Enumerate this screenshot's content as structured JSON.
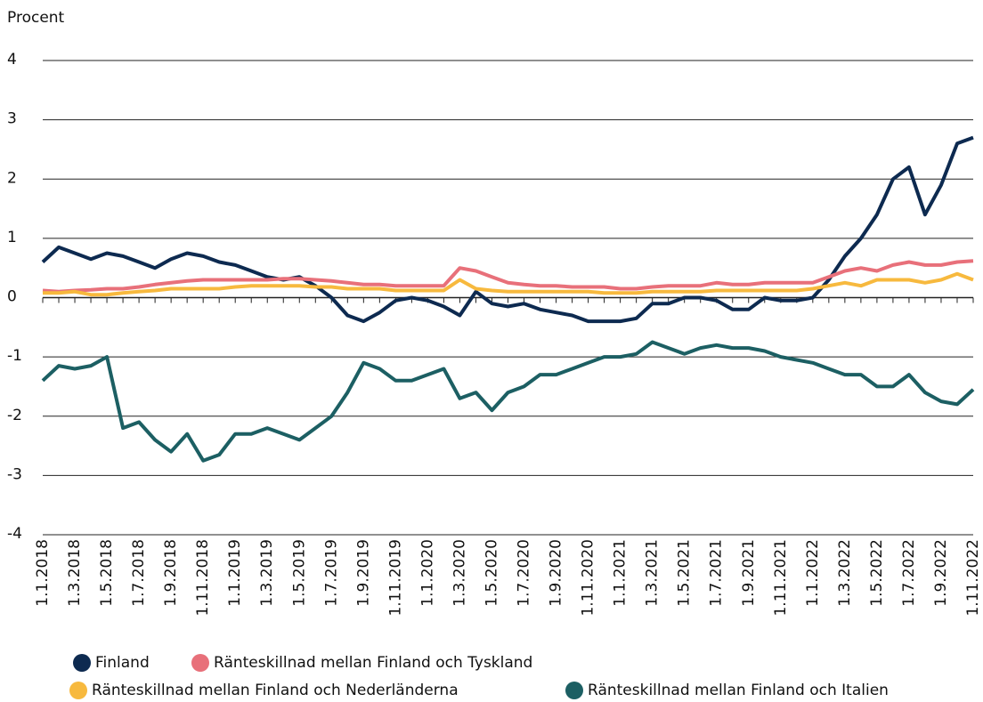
{
  "chart_data": {
    "type": "line",
    "y_label": "Procent",
    "categories": [
      "1.1.2018",
      null,
      "1.3.2018",
      null,
      "1.5.2018",
      null,
      "1.7.2018",
      null,
      "1.9.2018",
      null,
      "1.11.2018",
      null,
      "1.1.2019",
      null,
      "1.3.2019",
      null,
      "1.5.2019",
      null,
      "1.7.2019",
      null,
      "1.9.2019",
      null,
      "1.11.2019",
      null,
      "1.1.2020",
      null,
      "1.3.2020",
      null,
      "1.5.2020",
      null,
      "1.7.2020",
      null,
      "1.9.2020",
      null,
      "1.11.2020",
      null,
      "1.1.2021",
      null,
      "1.3.2021",
      null,
      "1.5.2021",
      null,
      "1.7.2021",
      null,
      "1.9.2021",
      null,
      "1.11.2021",
      null,
      "1.1.2022",
      null,
      "1.3.2022",
      null,
      "1.5.2022",
      null,
      "1.7.2022",
      null,
      "1.9.2022",
      null,
      "1.11.2022"
    ],
    "series": [
      {
        "name": "Finland",
        "color": "#0d2a50",
        "values": [
          0.6,
          0.85,
          0.75,
          0.65,
          0.75,
          0.7,
          0.6,
          0.5,
          0.65,
          0.75,
          0.7,
          0.6,
          0.55,
          0.45,
          0.35,
          0.3,
          0.35,
          0.2,
          0.0,
          -0.3,
          -0.4,
          -0.25,
          -0.05,
          0.0,
          -0.05,
          -0.15,
          -0.3,
          0.1,
          -0.1,
          -0.15,
          -0.1,
          -0.2,
          -0.25,
          -0.3,
          -0.4,
          -0.4,
          -0.4,
          -0.35,
          -0.1,
          -0.1,
          0.0,
          0.0,
          -0.05,
          -0.2,
          -0.2,
          0.0,
          -0.05,
          -0.05,
          0.0,
          0.3,
          0.7,
          1.0,
          1.4,
          2.0,
          2.2,
          1.4,
          1.9,
          2.6,
          2.7
        ]
      },
      {
        "name": "Ränteskillnad mellan Finland och Tyskland",
        "color": "#e8707a",
        "values": [
          0.12,
          0.1,
          0.12,
          0.13,
          0.15,
          0.15,
          0.18,
          0.22,
          0.25,
          0.28,
          0.3,
          0.3,
          0.3,
          0.3,
          0.3,
          0.32,
          0.32,
          0.3,
          0.28,
          0.25,
          0.22,
          0.22,
          0.2,
          0.2,
          0.2,
          0.2,
          0.5,
          0.45,
          0.35,
          0.25,
          0.22,
          0.2,
          0.2,
          0.18,
          0.18,
          0.18,
          0.15,
          0.15,
          0.18,
          0.2,
          0.2,
          0.2,
          0.25,
          0.22,
          0.22,
          0.25,
          0.25,
          0.25,
          0.25,
          0.35,
          0.45,
          0.5,
          0.45,
          0.55,
          0.6,
          0.55,
          0.55,
          0.6,
          0.62
        ]
      },
      {
        "name": "Ränteskillnad mellan Finland och Nederländerna",
        "color": "#f7b93e",
        "values": [
          0.08,
          0.08,
          0.1,
          0.05,
          0.05,
          0.08,
          0.1,
          0.12,
          0.15,
          0.15,
          0.15,
          0.15,
          0.18,
          0.2,
          0.2,
          0.2,
          0.2,
          0.18,
          0.18,
          0.15,
          0.15,
          0.15,
          0.12,
          0.12,
          0.12,
          0.12,
          0.3,
          0.15,
          0.12,
          0.1,
          0.1,
          0.1,
          0.1,
          0.1,
          0.1,
          0.08,
          0.08,
          0.08,
          0.1,
          0.1,
          0.1,
          0.1,
          0.12,
          0.12,
          0.12,
          0.12,
          0.12,
          0.12,
          0.15,
          0.2,
          0.25,
          0.2,
          0.3,
          0.3,
          0.3,
          0.25,
          0.3,
          0.4,
          0.3
        ]
      },
      {
        "name": "Ränteskillnad mellan Finland och Italien",
        "color": "#1c5f63",
        "values": [
          -1.4,
          -1.15,
          -1.2,
          -1.15,
          -1.0,
          -2.2,
          -2.1,
          -2.4,
          -2.6,
          -2.3,
          -2.75,
          -2.65,
          -2.3,
          -2.3,
          -2.2,
          -2.3,
          -2.4,
          -2.2,
          -2.0,
          -1.6,
          -1.1,
          -1.2,
          -1.4,
          -1.4,
          -1.3,
          -1.2,
          -1.7,
          -1.6,
          -1.9,
          -1.6,
          -1.5,
          -1.3,
          -1.3,
          -1.2,
          -1.1,
          -1.0,
          -1.0,
          -0.95,
          -0.75,
          -0.85,
          -0.95,
          -0.85,
          -0.8,
          -0.85,
          -0.85,
          -0.9,
          -1.0,
          -1.05,
          -1.1,
          -1.2,
          -1.3,
          -1.3,
          -1.5,
          -1.5,
          -1.3,
          -1.6,
          -1.75,
          -1.8,
          -1.55
        ]
      }
    ],
    "ylim": [
      -4,
      4
    ],
    "yticks": [
      -4,
      -3,
      -2,
      -1,
      0,
      1,
      2,
      3,
      4
    ],
    "grid": true
  }
}
